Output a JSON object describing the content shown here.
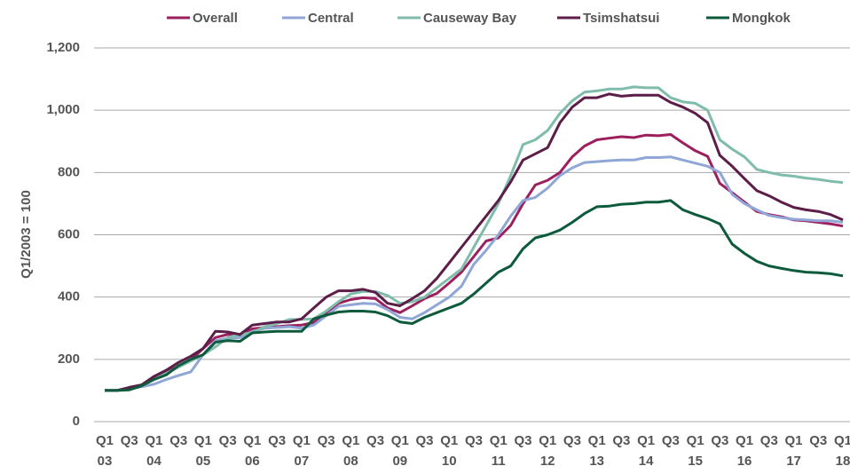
{
  "chart_data": {
    "type": "line",
    "ylabel": "Q1/2003 = 100",
    "categories": [
      "Q1\n03",
      null,
      "Q3",
      null,
      "Q1\n04",
      null,
      "Q3",
      null,
      "Q1\n05",
      null,
      "Q3",
      null,
      "Q1\n06",
      null,
      "Q3",
      null,
      "Q1\n07",
      null,
      "Q3",
      null,
      "Q1\n08",
      null,
      "Q3",
      null,
      "Q1\n09",
      null,
      "Q3",
      null,
      "Q1\n10",
      null,
      "Q3",
      null,
      "Q1\n11",
      null,
      "Q3",
      null,
      "Q1\n12",
      null,
      "Q3",
      null,
      "Q1\n13",
      null,
      "Q3",
      null,
      "Q1\n14",
      null,
      "Q3",
      null,
      "Q1\n15",
      null,
      "Q3",
      null,
      "Q1\n16",
      null,
      "Q3",
      null,
      "Q1\n17",
      null,
      "Q3",
      null,
      "Q1\n18"
    ],
    "series": [
      {
        "name": "Overall",
        "color": "#9c1f5e",
        "values": [
          100,
          100,
          108,
          115,
          140,
          158,
          178,
          198,
          235,
          270,
          280,
          278,
          298,
          302,
          305,
          308,
          310,
          318,
          350,
          380,
          392,
          398,
          395,
          365,
          350,
          372,
          395,
          412,
          445,
          480,
          530,
          580,
          590,
          630,
          700,
          760,
          775,
          800,
          850,
          885,
          905,
          910,
          915,
          912,
          920,
          918,
          922,
          895,
          870,
          852,
          765,
          735,
          705,
          675,
          665,
          658,
          648,
          645,
          640,
          635,
          628
        ]
      },
      {
        "name": "Central",
        "color": "#8fa6d6",
        "values": [
          100,
          100,
          105,
          112,
          120,
          135,
          148,
          160,
          215,
          260,
          268,
          270,
          290,
          300,
          302,
          305,
          300,
          310,
          340,
          370,
          375,
          380,
          378,
          360,
          335,
          330,
          350,
          375,
          400,
          435,
          505,
          550,
          600,
          660,
          710,
          720,
          750,
          790,
          815,
          832,
          835,
          838,
          840,
          840,
          848,
          848,
          850,
          840,
          830,
          820,
          800,
          730,
          700,
          680,
          662,
          655,
          650,
          648,
          645,
          645,
          640
        ]
      },
      {
        "name": "Causeway Bay",
        "color": "#80bcab",
        "values": [
          100,
          100,
          105,
          115,
          135,
          155,
          175,
          195,
          215,
          240,
          270,
          280,
          285,
          305,
          315,
          328,
          328,
          330,
          355,
          385,
          410,
          418,
          418,
          405,
          380,
          385,
          400,
          430,
          460,
          490,
          560,
          630,
          700,
          790,
          890,
          905,
          935,
          990,
          1030,
          1058,
          1062,
          1068,
          1068,
          1075,
          1072,
          1072,
          1040,
          1027,
          1022,
          1000,
          905,
          875,
          850,
          810,
          800,
          792,
          788,
          782,
          778,
          772,
          768
        ]
      },
      {
        "name": "Tsimshatsui",
        "color": "#5c1d48",
        "values": [
          100,
          100,
          110,
          118,
          145,
          165,
          190,
          210,
          235,
          290,
          288,
          280,
          310,
          315,
          320,
          320,
          330,
          365,
          400,
          420,
          420,
          425,
          415,
          380,
          372,
          395,
          420,
          460,
          510,
          560,
          610,
          660,
          710,
          770,
          840,
          860,
          880,
          960,
          1010,
          1040,
          1040,
          1052,
          1045,
          1048,
          1048,
          1048,
          1025,
          1010,
          990,
          960,
          855,
          820,
          780,
          742,
          725,
          705,
          688,
          680,
          675,
          665,
          648
        ]
      },
      {
        "name": "Mongkok",
        "color": "#0d5a3c",
        "values": [
          100,
          100,
          102,
          115,
          135,
          150,
          180,
          200,
          215,
          255,
          260,
          258,
          285,
          288,
          290,
          290,
          290,
          330,
          342,
          352,
          355,
          355,
          352,
          340,
          320,
          315,
          335,
          350,
          365,
          380,
          410,
          445,
          480,
          500,
          555,
          590,
          600,
          615,
          640,
          668,
          690,
          692,
          698,
          700,
          705,
          705,
          710,
          680,
          665,
          652,
          635,
          570,
          540,
          515,
          500,
          492,
          485,
          480,
          478,
          475,
          468
        ]
      }
    ],
    "ylim": [
      0,
      1200
    ],
    "yticks": [
      0,
      200,
      400,
      600,
      800,
      {
        "value": 1000,
        "label": "1,000"
      },
      {
        "value": 1200,
        "label": "1,200"
      }
    ],
    "grid": true,
    "legend": "top"
  }
}
